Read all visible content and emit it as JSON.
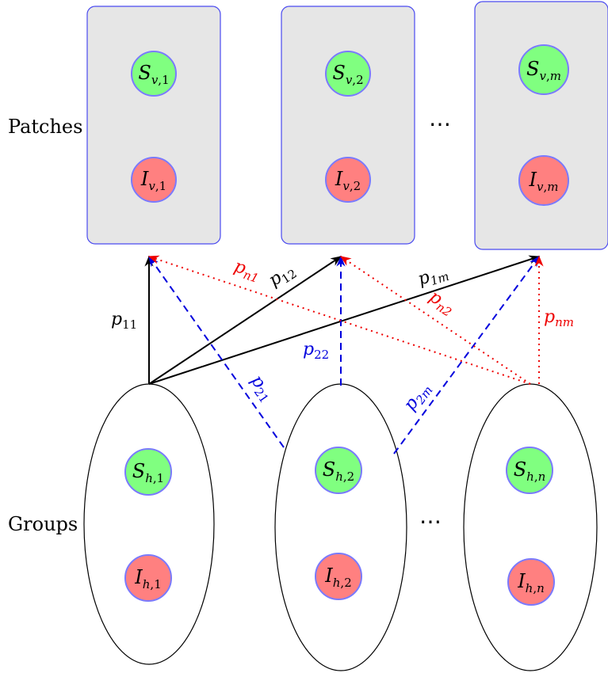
{
  "row_labels": {
    "patches": "Patches",
    "groups": "Groups"
  },
  "ellipsis": "⋯",
  "colors": {
    "box_fill": "#e6e6e6",
    "box_stroke": "#4a4af0",
    "s_fill": "#80ff80",
    "i_fill": "#ff8080",
    "node_stroke": "#7a7aff",
    "solid_edge": "#000000",
    "dashed_edge": "#0000dd",
    "dotted_edge": "#ee0000"
  },
  "patches": [
    {
      "s": {
        "base": "S",
        "sub_a": "v",
        "sub_b": "1"
      },
      "i": {
        "base": "I",
        "sub_a": "v",
        "sub_b": "1"
      }
    },
    {
      "s": {
        "base": "S",
        "sub_a": "v",
        "sub_b": "2"
      },
      "i": {
        "base": "I",
        "sub_a": "v",
        "sub_b": "2"
      }
    },
    {
      "s": {
        "base": "S",
        "sub_a": "v",
        "sub_b": "m"
      },
      "i": {
        "base": "I",
        "sub_a": "v",
        "sub_b": "m"
      }
    }
  ],
  "groups": [
    {
      "s": {
        "base": "S",
        "sub_a": "h",
        "sub_b": "1"
      },
      "i": {
        "base": "I",
        "sub_a": "h",
        "sub_b": "1"
      }
    },
    {
      "s": {
        "base": "S",
        "sub_a": "h",
        "sub_b": "2"
      },
      "i": {
        "base": "I",
        "sub_a": "h",
        "sub_b": "2"
      }
    },
    {
      "s": {
        "base": "S",
        "sub_a": "h",
        "sub_b": "n"
      },
      "i": {
        "base": "I",
        "sub_a": "h",
        "sub_b": "n"
      }
    }
  ],
  "edges": {
    "p11": {
      "base": "p",
      "sub": "11"
    },
    "p12": {
      "base": "p",
      "sub": "12"
    },
    "p1m": {
      "base": "p",
      "sub": "1m"
    },
    "p21": {
      "base": "p",
      "sub": "21"
    },
    "p22": {
      "base": "p",
      "sub": "22"
    },
    "p2m": {
      "base": "p",
      "sub": "2m"
    },
    "pn1": {
      "base": "p",
      "sub": "n1"
    },
    "pn2": {
      "base": "p",
      "sub": "n2"
    },
    "pnm": {
      "base": "p",
      "sub": "nm"
    }
  }
}
